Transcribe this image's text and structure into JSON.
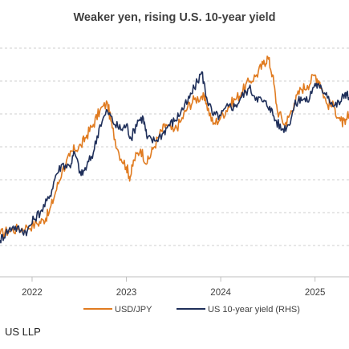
{
  "chart_data": {
    "type": "line",
    "title": "Weaker yen, rising U.S. 10-year yield",
    "x_axis": {
      "ticks": [
        "2022",
        "2023",
        "2024",
        "2025"
      ],
      "range": [
        2021.66,
        2025.36
      ]
    },
    "y_left": {
      "label": "",
      "range": [
        100,
        165
      ]
    },
    "y_right": {
      "label": "",
      "range": [
        0.5,
        5.5
      ]
    },
    "grid": "horizontal-dashed",
    "legend_position": "bottom",
    "series": [
      {
        "name": "USD/JPY",
        "axis": "left",
        "color": "#e07b20",
        "points": [
          [
            2021.66,
            112
          ],
          [
            2021.75,
            113
          ],
          [
            2021.85,
            113.5
          ],
          [
            2021.95,
            114
          ],
          [
            2022.05,
            115
          ],
          [
            2022.12,
            116
          ],
          [
            2022.18,
            118
          ],
          [
            2022.25,
            124
          ],
          [
            2022.32,
            130
          ],
          [
            2022.4,
            134
          ],
          [
            2022.45,
            136
          ],
          [
            2022.52,
            137
          ],
          [
            2022.58,
            140
          ],
          [
            2022.65,
            143
          ],
          [
            2022.72,
            147
          ],
          [
            2022.8,
            149
          ],
          [
            2022.85,
            142
          ],
          [
            2022.92,
            135
          ],
          [
            2023.0,
            131
          ],
          [
            2023.04,
            128
          ],
          [
            2023.08,
            133
          ],
          [
            2023.15,
            136
          ],
          [
            2023.22,
            132
          ],
          [
            2023.28,
            136
          ],
          [
            2023.35,
            140
          ],
          [
            2023.42,
            143
          ],
          [
            2023.5,
            141
          ],
          [
            2023.58,
            144
          ],
          [
            2023.65,
            148
          ],
          [
            2023.72,
            150
          ],
          [
            2023.8,
            151
          ],
          [
            2023.85,
            149
          ],
          [
            2023.92,
            143
          ],
          [
            2024.0,
            145
          ],
          [
            2024.08,
            148
          ],
          [
            2024.15,
            150
          ],
          [
            2024.22,
            152
          ],
          [
            2024.3,
            155
          ],
          [
            2024.38,
            157
          ],
          [
            2024.45,
            160
          ],
          [
            2024.5,
            162
          ],
          [
            2024.55,
            157
          ],
          [
            2024.6,
            147
          ],
          [
            2024.68,
            143
          ],
          [
            2024.72,
            145
          ],
          [
            2024.78,
            149
          ],
          [
            2024.85,
            153
          ],
          [
            2024.92,
            154
          ],
          [
            2025.0,
            157
          ],
          [
            2025.05,
            155
          ],
          [
            2025.12,
            149
          ],
          [
            2025.2,
            148
          ],
          [
            2025.27,
            144
          ],
          [
            2025.32,
            143
          ],
          [
            2025.36,
            146
          ]
        ]
      },
      {
        "name": "US 10-year yield (RHS)",
        "axis": "right",
        "color": "#1f2f5a",
        "points": [
          [
            2021.66,
            1.3
          ],
          [
            2021.72,
            1.45
          ],
          [
            2021.8,
            1.6
          ],
          [
            2021.88,
            1.5
          ],
          [
            2021.95,
            1.5
          ],
          [
            2022.02,
            1.75
          ],
          [
            2022.1,
            1.95
          ],
          [
            2022.18,
            2.2
          ],
          [
            2022.25,
            2.7
          ],
          [
            2022.32,
            2.95
          ],
          [
            2022.4,
            2.9
          ],
          [
            2022.45,
            3.2
          ],
          [
            2022.52,
            2.7
          ],
          [
            2022.58,
            2.9
          ],
          [
            2022.65,
            3.2
          ],
          [
            2022.72,
            3.8
          ],
          [
            2022.8,
            4.1
          ],
          [
            2022.88,
            3.8
          ],
          [
            2022.95,
            3.7
          ],
          [
            2023.0,
            3.8
          ],
          [
            2023.05,
            3.5
          ],
          [
            2023.12,
            3.9
          ],
          [
            2023.18,
            3.95
          ],
          [
            2023.22,
            3.5
          ],
          [
            2023.3,
            3.45
          ],
          [
            2023.38,
            3.6
          ],
          [
            2023.45,
            3.8
          ],
          [
            2023.52,
            3.9
          ],
          [
            2023.58,
            4.1
          ],
          [
            2023.65,
            4.3
          ],
          [
            2023.72,
            4.6
          ],
          [
            2023.8,
            4.95
          ],
          [
            2023.85,
            4.4
          ],
          [
            2023.92,
            4.0
          ],
          [
            2024.0,
            4.0
          ],
          [
            2024.08,
            4.2
          ],
          [
            2024.15,
            4.2
          ],
          [
            2024.22,
            4.4
          ],
          [
            2024.3,
            4.6
          ],
          [
            2024.38,
            4.4
          ],
          [
            2024.45,
            4.3
          ],
          [
            2024.52,
            4.2
          ],
          [
            2024.58,
            3.9
          ],
          [
            2024.65,
            3.7
          ],
          [
            2024.72,
            3.8
          ],
          [
            2024.78,
            4.2
          ],
          [
            2024.85,
            4.4
          ],
          [
            2024.92,
            4.3
          ],
          [
            2025.0,
            4.7
          ],
          [
            2025.05,
            4.6
          ],
          [
            2025.12,
            4.5
          ],
          [
            2025.2,
            4.2
          ],
          [
            2025.27,
            4.3
          ],
          [
            2025.32,
            4.5
          ],
          [
            2025.36,
            4.4
          ]
        ]
      }
    ]
  },
  "footer": {
    "text": "US LLP"
  }
}
